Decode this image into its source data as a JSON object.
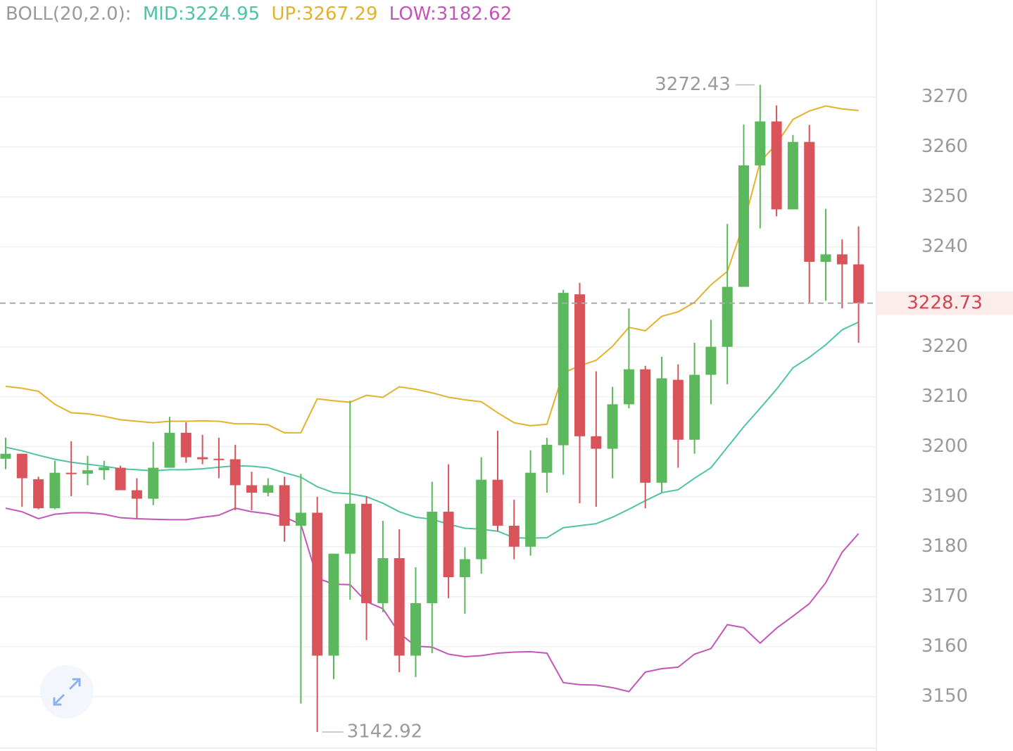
{
  "chart_data": {
    "type": "candlestick",
    "indicator": "BOLL(20,2.0):",
    "open": [
      3197.6,
      3198.6,
      3193.5,
      3187.7,
      3194.8,
      3194.6,
      3195.3,
      3195.8,
      3191.3,
      3189.6,
      3195.8,
      3202.8,
      3197.9,
      3197.6,
      3197.5,
      3192.3,
      3190.8,
      3192.3,
      3184.2,
      3186.8,
      3158.2,
      3178.6,
      3188.6,
      3168.7,
      3177.7,
      3158.2,
      3168.7,
      3187.0,
      3173.9,
      3177.5,
      3193.4,
      3184.2,
      3180.0,
      3194.8,
      3200.3,
      3230.5,
      3202.1,
      3199.6,
      3208.5,
      3215.5,
      3192.8,
      3213.4,
      3201.4,
      3214.4,
      3220.0,
      3232.0,
      3256.3,
      3265.1,
      3247.5,
      3261.0,
      3237.0,
      3238.5,
      3236.5
    ],
    "high": [
      3201.8,
      3198.6,
      3194.0,
      3197.2,
      3201.1,
      3198.2,
      3197.2,
      3196.2,
      3193.7,
      3201.0,
      3206.0,
      3204.9,
      3202.4,
      3201.8,
      3200.4,
      3195.0,
      3193.7,
      3194.0,
      3194.6,
      3190.0,
      3178.6,
      3209.2,
      3190.1,
      3185.2,
      3183.5,
      3175.9,
      3193.0,
      3196.5,
      3179.9,
      3197.9,
      3203.2,
      3189.4,
      3199.3,
      3201.8,
      3231.4,
      3232.8,
      3215.1,
      3212.0,
      3227.7,
      3216.2,
      3218.0,
      3216.5,
      3220.8,
      3225.4,
      3244.6,
      3264.5,
      3272.43,
      3268.3,
      3262.4,
      3264.4,
      3247.6,
      3241.5,
      3244.1
    ],
    "low": [
      3195.5,
      3188.0,
      3187.5,
      3187.5,
      3190.1,
      3192.3,
      3193.4,
      3191.3,
      3185.6,
      3188.3,
      3195.8,
      3196.8,
      3196.5,
      3193.7,
      3187.3,
      3187.3,
      3190.1,
      3181.0,
      3148.6,
      3142.92,
      3153.5,
      3169.4,
      3161.3,
      3166.9,
      3154.9,
      3153.9,
      3158.7,
      3169.7,
      3166.6,
      3174.6,
      3183.1,
      3177.5,
      3178.2,
      3190.8,
      3194.4,
      3188.7,
      3188.0,
      3193.7,
      3207.7,
      3187.7,
      3190.8,
      3195.8,
      3198.6,
      3208.5,
      3212.5,
      3232.0,
      3243.7,
      3246.1,
      3247.5,
      3228.6,
      3229.2,
      3227.7,
      3220.8
    ],
    "close": [
      3198.6,
      3193.7,
      3187.7,
      3194.8,
      3194.6,
      3195.3,
      3195.9,
      3191.3,
      3189.6,
      3195.8,
      3202.8,
      3197.9,
      3197.5,
      3197.5,
      3192.3,
      3190.8,
      3192.3,
      3184.2,
      3186.8,
      3158.2,
      3178.6,
      3188.6,
      3168.7,
      3177.7,
      3158.2,
      3168.7,
      3187.0,
      3173.9,
      3177.5,
      3193.4,
      3184.2,
      3180.0,
      3194.8,
      3200.4,
      3230.8,
      3202.1,
      3199.6,
      3208.5,
      3215.5,
      3192.8,
      3213.7,
      3201.4,
      3214.4,
      3220.0,
      3232.0,
      3256.3,
      3265.1,
      3247.5,
      3261.0,
      3237.0,
      3238.5,
      3236.5,
      3228.73
    ],
    "up_color": "#5cb85c",
    "down_color": "#d9535b",
    "series": [
      {
        "name": "MID:3224.95",
        "color": "#4fc3a6",
        "values": [
          3199.9,
          3199.2,
          3198.3,
          3197.5,
          3196.9,
          3196.5,
          3196.1,
          3195.6,
          3195.4,
          3195.2,
          3195.4,
          3195.4,
          3195.6,
          3195.9,
          3196.2,
          3196.1,
          3195.8,
          3194.8,
          3193.9,
          3192.0,
          3190.8,
          3190.6,
          3190.0,
          3188.7,
          3187.0,
          3185.9,
          3185.5,
          3184.5,
          3183.7,
          3183.5,
          3183.1,
          3181.8,
          3181.7,
          3181.8,
          3183.8,
          3184.2,
          3184.6,
          3185.9,
          3187.5,
          3189.2,
          3190.8,
          3191.4,
          3193.7,
          3195.8,
          3199.9,
          3204.0,
          3207.7,
          3211.5,
          3215.8,
          3217.9,
          3220.4,
          3223.4,
          3224.95
        ]
      },
      {
        "name": "UP:3267.29",
        "color": "#e3b22d",
        "values": [
          3212.1,
          3211.7,
          3211.1,
          3208.5,
          3206.8,
          3206.6,
          3206.1,
          3205.4,
          3205.1,
          3204.8,
          3205.1,
          3205.1,
          3205.2,
          3205.1,
          3204.6,
          3204.6,
          3204.4,
          3202.8,
          3202.8,
          3209.6,
          3209.2,
          3208.9,
          3210.3,
          3209.9,
          3212.0,
          3211.5,
          3210.8,
          3209.9,
          3209.4,
          3209.0,
          3206.8,
          3204.8,
          3204.2,
          3204.5,
          3214.8,
          3216.2,
          3217.3,
          3220.1,
          3223.9,
          3223.2,
          3226.1,
          3227.0,
          3228.9,
          3232.4,
          3235.1,
          3244.6,
          3257.0,
          3260.6,
          3265.5,
          3267.2,
          3268.2,
          3267.6,
          3267.29
        ]
      },
      {
        "name": "LOW:3182.62",
        "color": "#c455b8",
        "values": [
          3187.7,
          3187.0,
          3185.6,
          3186.5,
          3186.8,
          3186.8,
          3186.5,
          3185.8,
          3185.6,
          3185.5,
          3185.4,
          3185.4,
          3185.9,
          3186.3,
          3187.7,
          3187.0,
          3186.6,
          3185.9,
          3184.5,
          3173.7,
          3172.5,
          3172.4,
          3169.0,
          3167.6,
          3162.7,
          3160.1,
          3159.9,
          3158.5,
          3158.0,
          3158.2,
          3158.7,
          3158.9,
          3159.0,
          3158.7,
          3152.8,
          3152.4,
          3152.3,
          3151.8,
          3151.0,
          3154.9,
          3155.6,
          3155.9,
          3158.5,
          3159.6,
          3164.4,
          3163.8,
          3160.7,
          3163.7,
          3166.1,
          3168.6,
          3172.8,
          3178.9,
          3182.62
        ]
      }
    ],
    "ylim": [
      3139.4,
      3289.4
    ],
    "yticks": [
      3150,
      3160,
      3170,
      3180,
      3190,
      3200,
      3210,
      3220,
      3240,
      3250,
      3260,
      3270
    ],
    "grid": true,
    "last_price": 3228.73,
    "max_high": 3272.43,
    "min_low": 3142.92
  }
}
